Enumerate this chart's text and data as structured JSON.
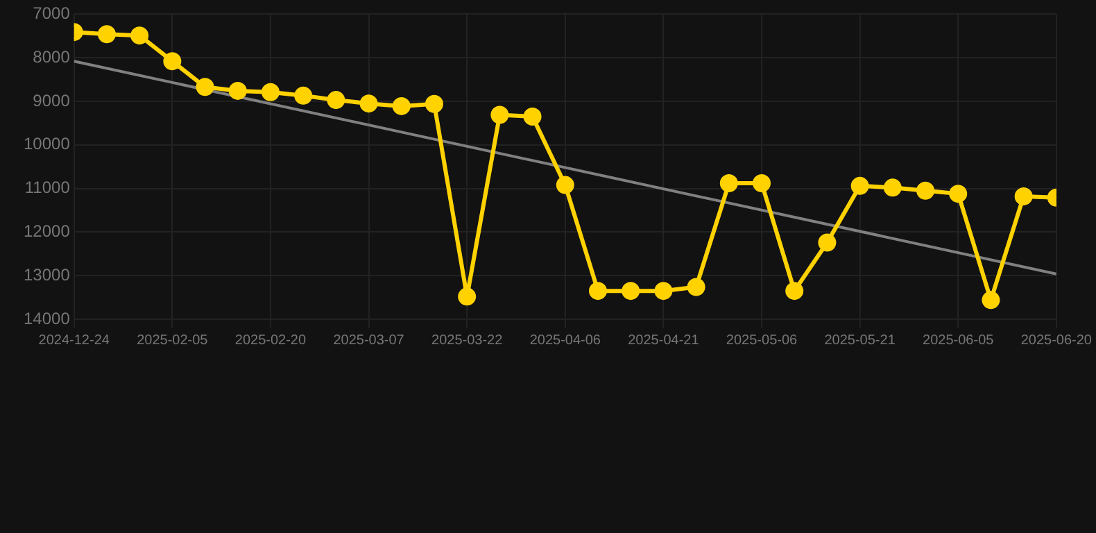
{
  "chart_data": {
    "type": "line",
    "categories": [
      "2024-12-24",
      null,
      null,
      "2025-02-05",
      null,
      null,
      "2025-02-20",
      null,
      null,
      "2025-03-07",
      null,
      null,
      "2025-03-22",
      null,
      null,
      "2025-04-06",
      null,
      null,
      "2025-04-21",
      null,
      null,
      "2025-05-06",
      null,
      null,
      "2025-05-21",
      null,
      null,
      "2025-06-05",
      null,
      null,
      "2025-06-20"
    ],
    "series": [
      {
        "color": "#ffd200",
        "values": [
          7410,
          7460,
          7490,
          8080,
          8670,
          8760,
          8790,
          8870,
          8970,
          9050,
          9110,
          9060,
          13480,
          9310,
          9350,
          10920,
          13350,
          13350,
          13350,
          13260,
          10880,
          10880,
          13350,
          12240,
          10940,
          10980,
          11050,
          11120,
          13560,
          11180,
          11210
        ]
      },
      {
        "type": "line",
        "color": "#808080",
        "marker": "none",
        "values": [
          8080,
          null,
          null,
          null,
          null,
          null,
          null,
          null,
          null,
          null,
          null,
          null,
          null,
          null,
          null,
          null,
          null,
          null,
          null,
          null,
          null,
          null,
          null,
          null,
          null,
          null,
          null,
          null,
          null,
          null,
          12960
        ]
      }
    ],
    "ylim": [
      14000,
      7000
    ],
    "yticks": [
      7000,
      8000,
      9000,
      10000,
      11000,
      12000,
      13000,
      14000
    ],
    "grid": true,
    "marker": "circle",
    "legend": false
  }
}
